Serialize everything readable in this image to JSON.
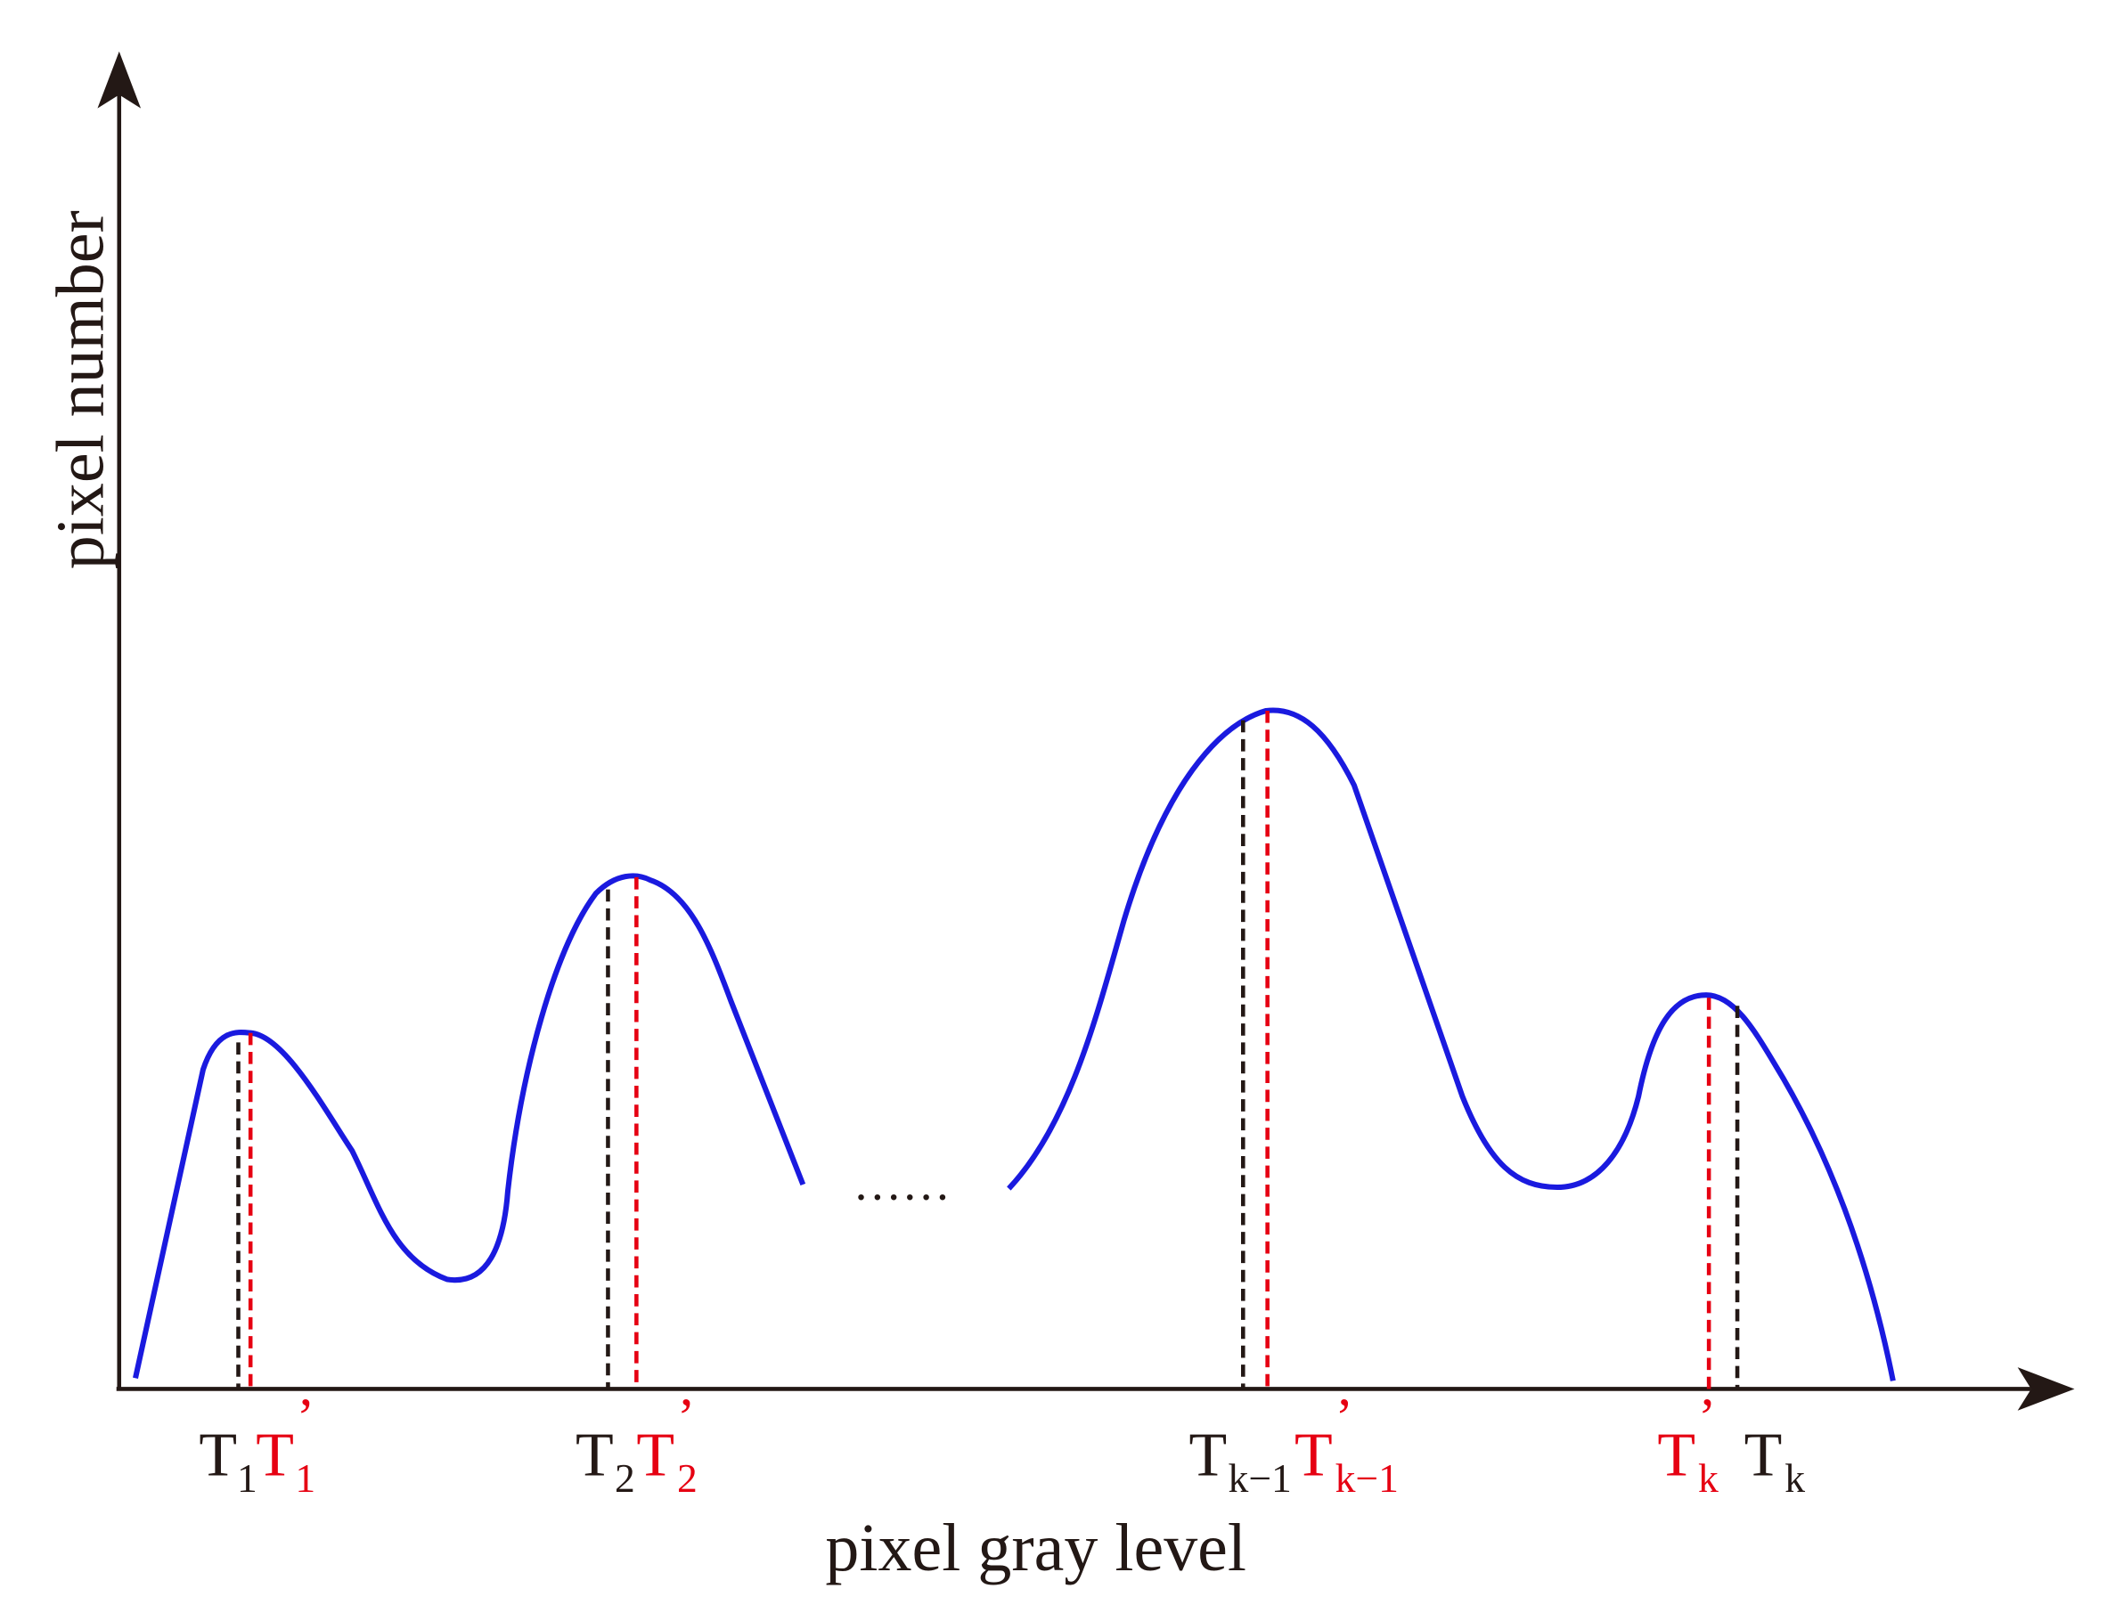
{
  "axes": {
    "x_label": "pixel gray level",
    "y_label": "pixel number"
  },
  "ellipsis": "……",
  "thresholds": [
    {
      "base": "T",
      "sub": "1"
    },
    {
      "base": "T",
      "prime": "’",
      "sub": "1"
    },
    {
      "base": "T",
      "sub": "2"
    },
    {
      "base": "T",
      "prime": "’",
      "sub": "2"
    },
    {
      "base": "T",
      "sub": "k−1"
    },
    {
      "base": "T",
      "prime": "’",
      "sub": "k−1"
    },
    {
      "base": "T",
      "prime": "’",
      "sub": "k"
    },
    {
      "base": "T",
      "sub": "k"
    }
  ]
}
